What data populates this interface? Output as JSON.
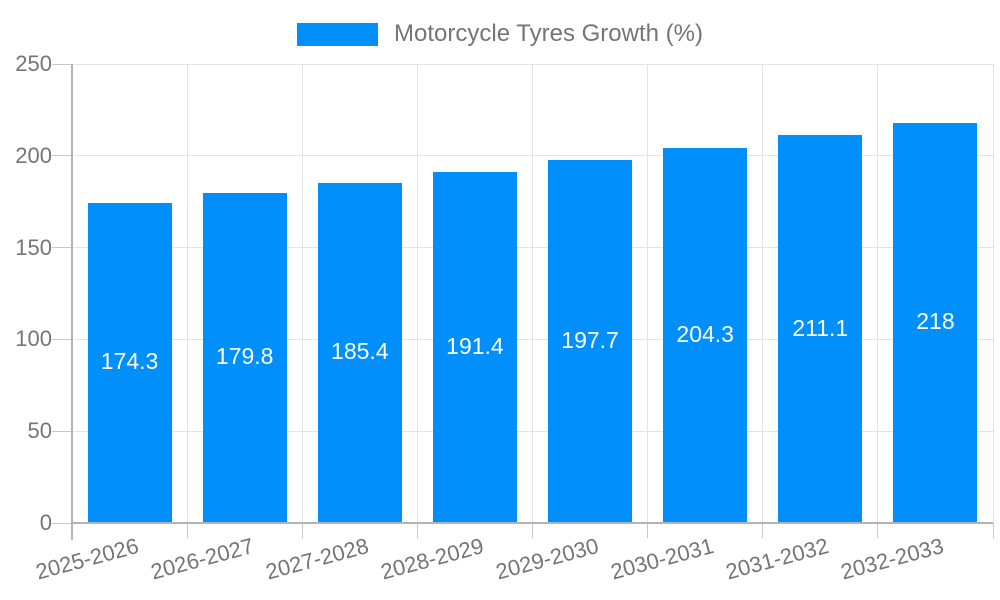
{
  "chart_data": {
    "type": "bar",
    "title": "Motorcycle Tyres Growth (%)",
    "legend": {
      "label": "Motorcycle Tyres Growth (%)",
      "position": "top"
    },
    "categories": [
      "2025-2026",
      "2026-2027",
      "2027-2028",
      "2028-2029",
      "2029-2030",
      "2030-2031",
      "2031-2032",
      "2032-2033"
    ],
    "series": [
      {
        "name": "Motorcycle Tyres Growth (%)",
        "values": [
          174.3,
          179.8,
          185.4,
          191.4,
          197.7,
          204.3,
          211.1,
          218
        ]
      }
    ],
    "value_labels": [
      "174.3",
      "179.8",
      "185.4",
      "191.4",
      "197.7",
      "204.3",
      "211.1",
      "218"
    ],
    "xlabel": "",
    "ylabel": "",
    "ylim": [
      0,
      250
    ],
    "yticks": [
      "0",
      "50",
      "100",
      "150",
      "200",
      "250"
    ],
    "grid": "on",
    "colors": {
      "bar": "#008FFB",
      "axis": "#b3b3b3",
      "grid": "#e3e3e3",
      "tick": "#c7c7c7",
      "axis_text": "#757575",
      "value_text": "#ffffff"
    }
  }
}
